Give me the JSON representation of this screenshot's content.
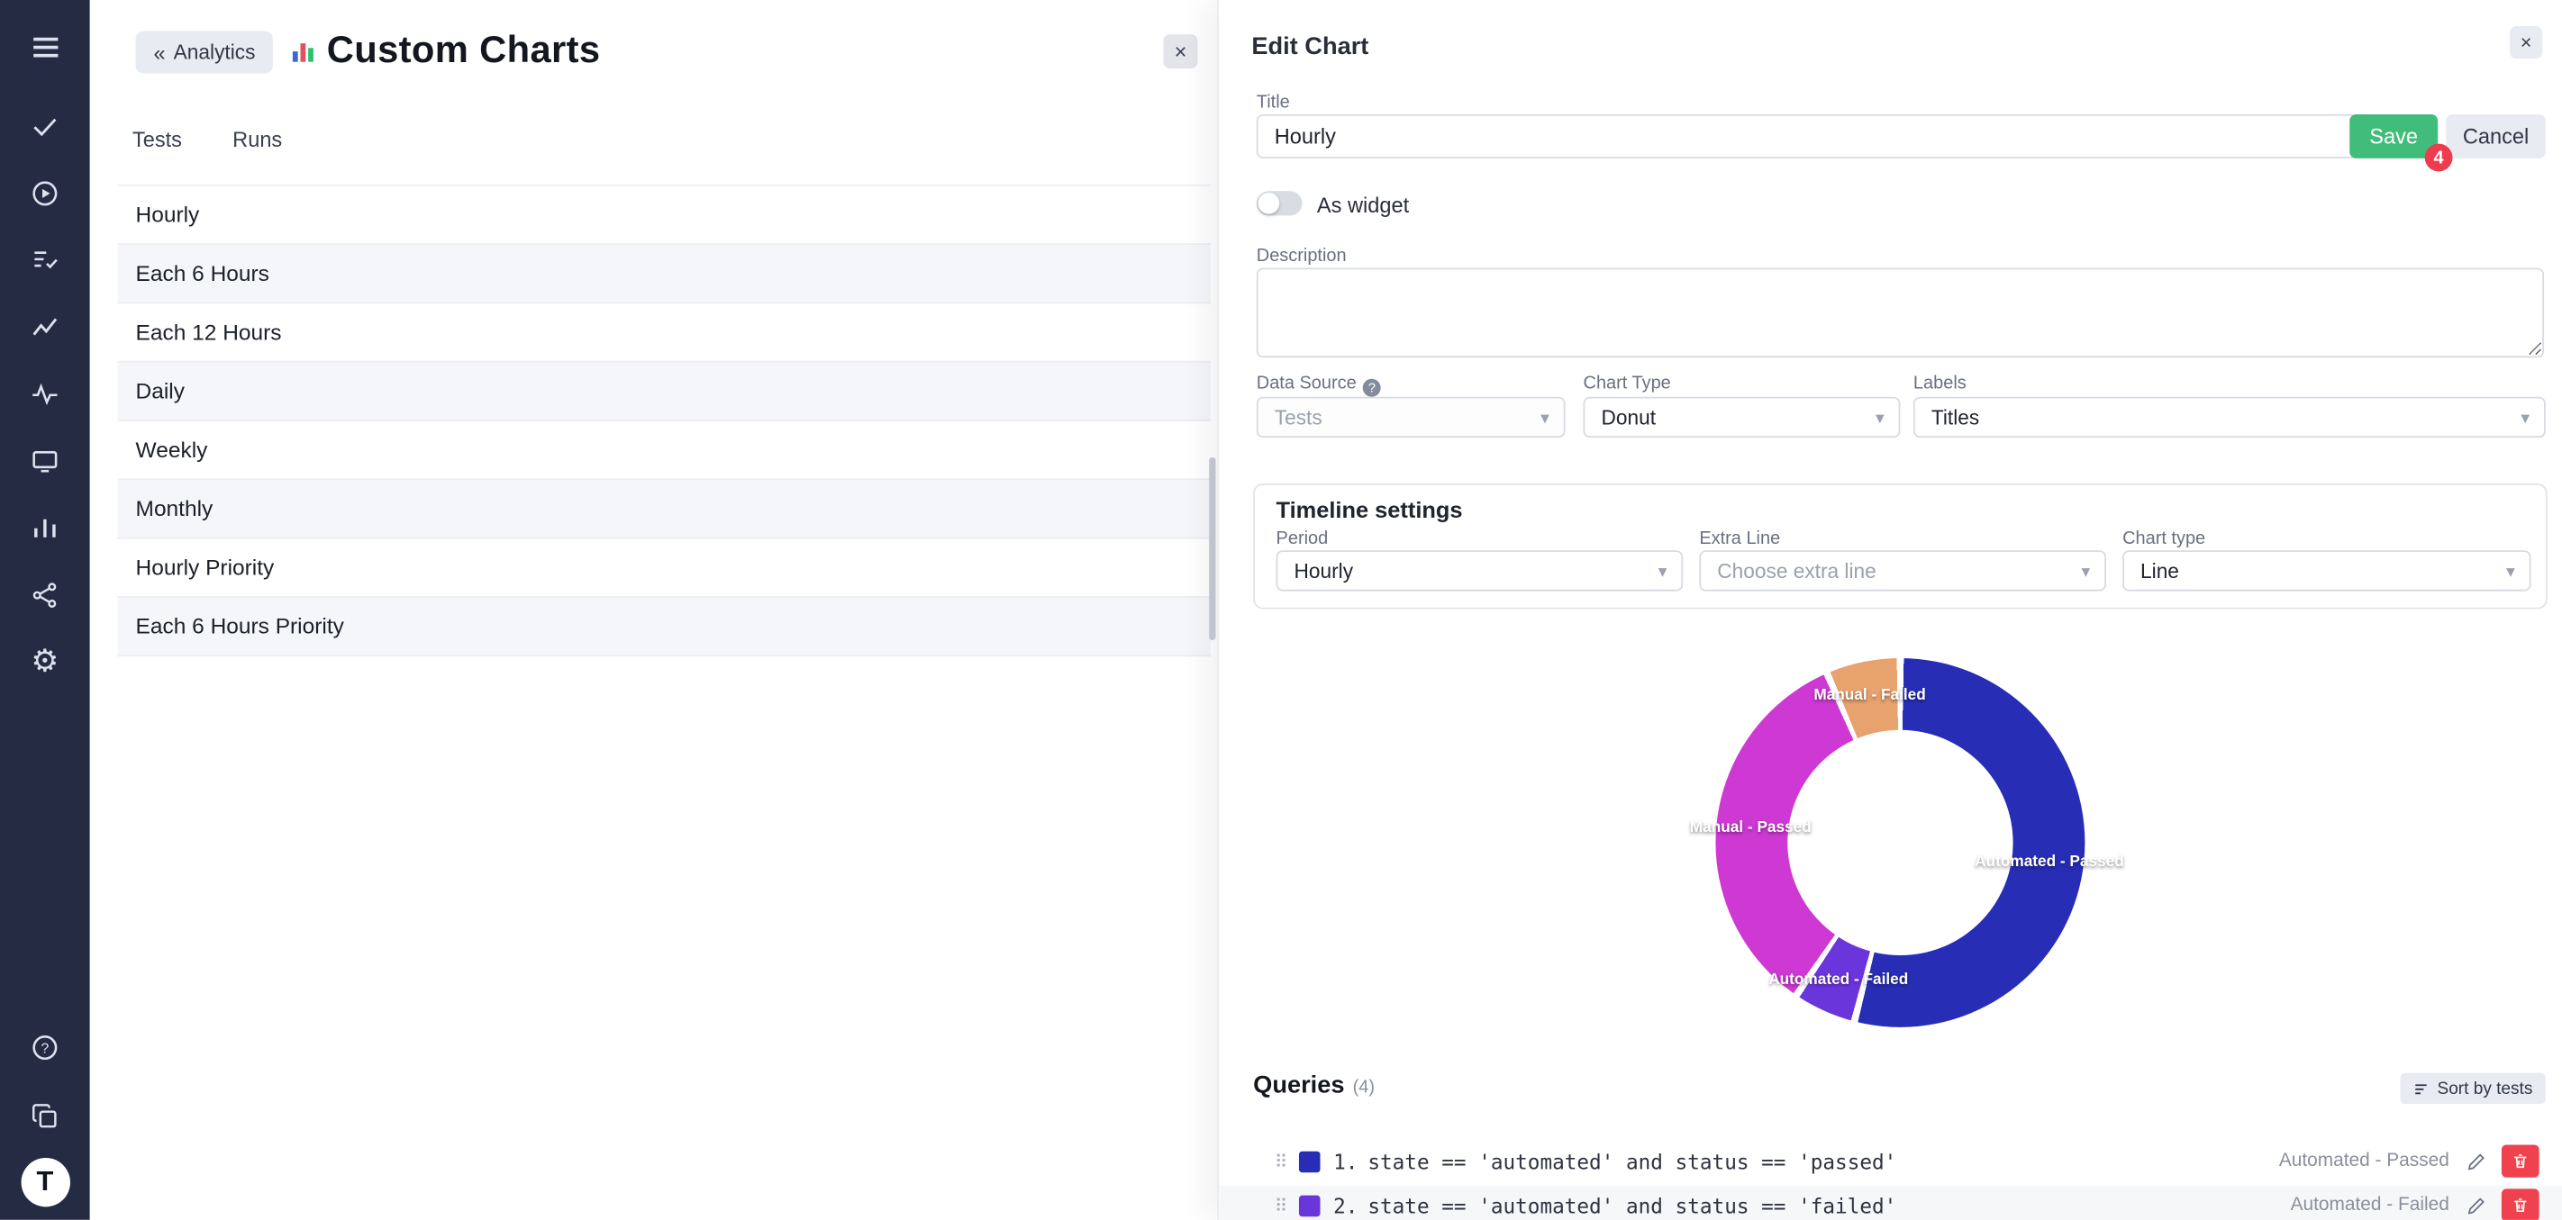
{
  "sidebar": {
    "logo": "T"
  },
  "left_panel": {
    "back_label": "Analytics",
    "back_chevrons": "«",
    "title": "Custom Charts",
    "close_label": "×",
    "tabs": [
      {
        "label": "Tests"
      },
      {
        "label": "Runs"
      }
    ],
    "items": [
      {
        "label": "Hourly"
      },
      {
        "label": "Each 6 Hours"
      },
      {
        "label": "Each 12 Hours"
      },
      {
        "label": "Daily"
      },
      {
        "label": "Weekly"
      },
      {
        "label": "Monthly"
      },
      {
        "label": "Hourly Priority"
      },
      {
        "label": "Each 6 Hours Priority"
      }
    ]
  },
  "editor": {
    "title": "Edit Chart",
    "close_label": "×",
    "title_field": {
      "label": "Title",
      "value": "Hourly"
    },
    "save_label": "Save",
    "cancel_label": "Cancel",
    "badge": "4",
    "as_widget_label": "As widget",
    "description_label": "Description",
    "data_source": {
      "label": "Data Source",
      "value": "Tests"
    },
    "chart_type": {
      "label": "Chart Type",
      "value": "Donut"
    },
    "labels_select": {
      "label": "Labels",
      "value": "Titles"
    },
    "timeline": {
      "title": "Timeline settings",
      "period": {
        "label": "Period",
        "value": "Hourly"
      },
      "extra_line": {
        "label": "Extra Line",
        "value": "Choose extra line"
      },
      "chart_type": {
        "label": "Chart type",
        "value": "Line"
      }
    },
    "queries": {
      "title": "Queries",
      "count": "(4)",
      "sort_label": "Sort by tests",
      "rows": [
        {
          "index": "1.",
          "color": "#272eb5",
          "query": "state == 'automated' and status == 'passed'",
          "result": "Automated - Passed"
        },
        {
          "index": "2.",
          "color": "#6b35dc",
          "query": "state == 'automated' and status == 'failed'",
          "result": "Automated - Failed"
        }
      ]
    }
  },
  "chart_data": {
    "type": "pie",
    "subtype": "donut",
    "labels": [
      "Automated - Passed",
      "Automated - Failed",
      "Manual - Passed",
      "Manual - Failed"
    ],
    "values": [
      54,
      5.5,
      34,
      6.5
    ],
    "colors": [
      "#272eb5",
      "#6b35dc",
      "#ce39d3",
      "#e7a26e"
    ],
    "label_color": "#ffffff",
    "legend_position": "on-slices"
  }
}
